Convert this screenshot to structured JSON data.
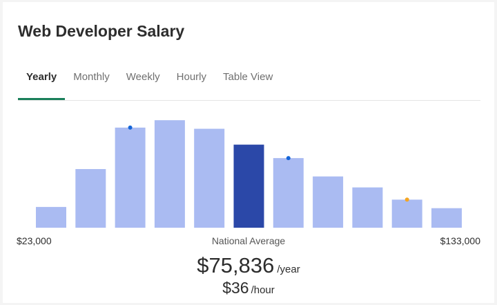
{
  "title": "Web Developer Salary",
  "tabs": [
    {
      "label": "Yearly",
      "active": true
    },
    {
      "label": "Monthly",
      "active": false
    },
    {
      "label": "Weekly",
      "active": false
    },
    {
      "label": "Hourly",
      "active": false
    },
    {
      "label": "Table View",
      "active": false
    }
  ],
  "chart_data": {
    "type": "bar",
    "values": [
      17,
      48,
      82,
      88,
      81,
      68,
      57,
      42,
      33,
      23,
      16
    ],
    "highlight_index": 5,
    "markers": [
      {
        "bar_index": 2,
        "color": "#1565d8"
      },
      {
        "bar_index": 6,
        "color": "#1565d8"
      },
      {
        "bar_index": 9,
        "color": "#f5a623"
      }
    ],
    "ylim": [
      0,
      100
    ],
    "colors": {
      "bar": "#aabbf2",
      "highlight": "#2b48a8"
    }
  },
  "range": {
    "min": "$23,000",
    "max": "$133,000",
    "center_label": "National Average"
  },
  "average": {
    "yearly": "$75,836",
    "yearly_unit": "/year",
    "hourly": "$36",
    "hourly_unit": "/hour"
  }
}
